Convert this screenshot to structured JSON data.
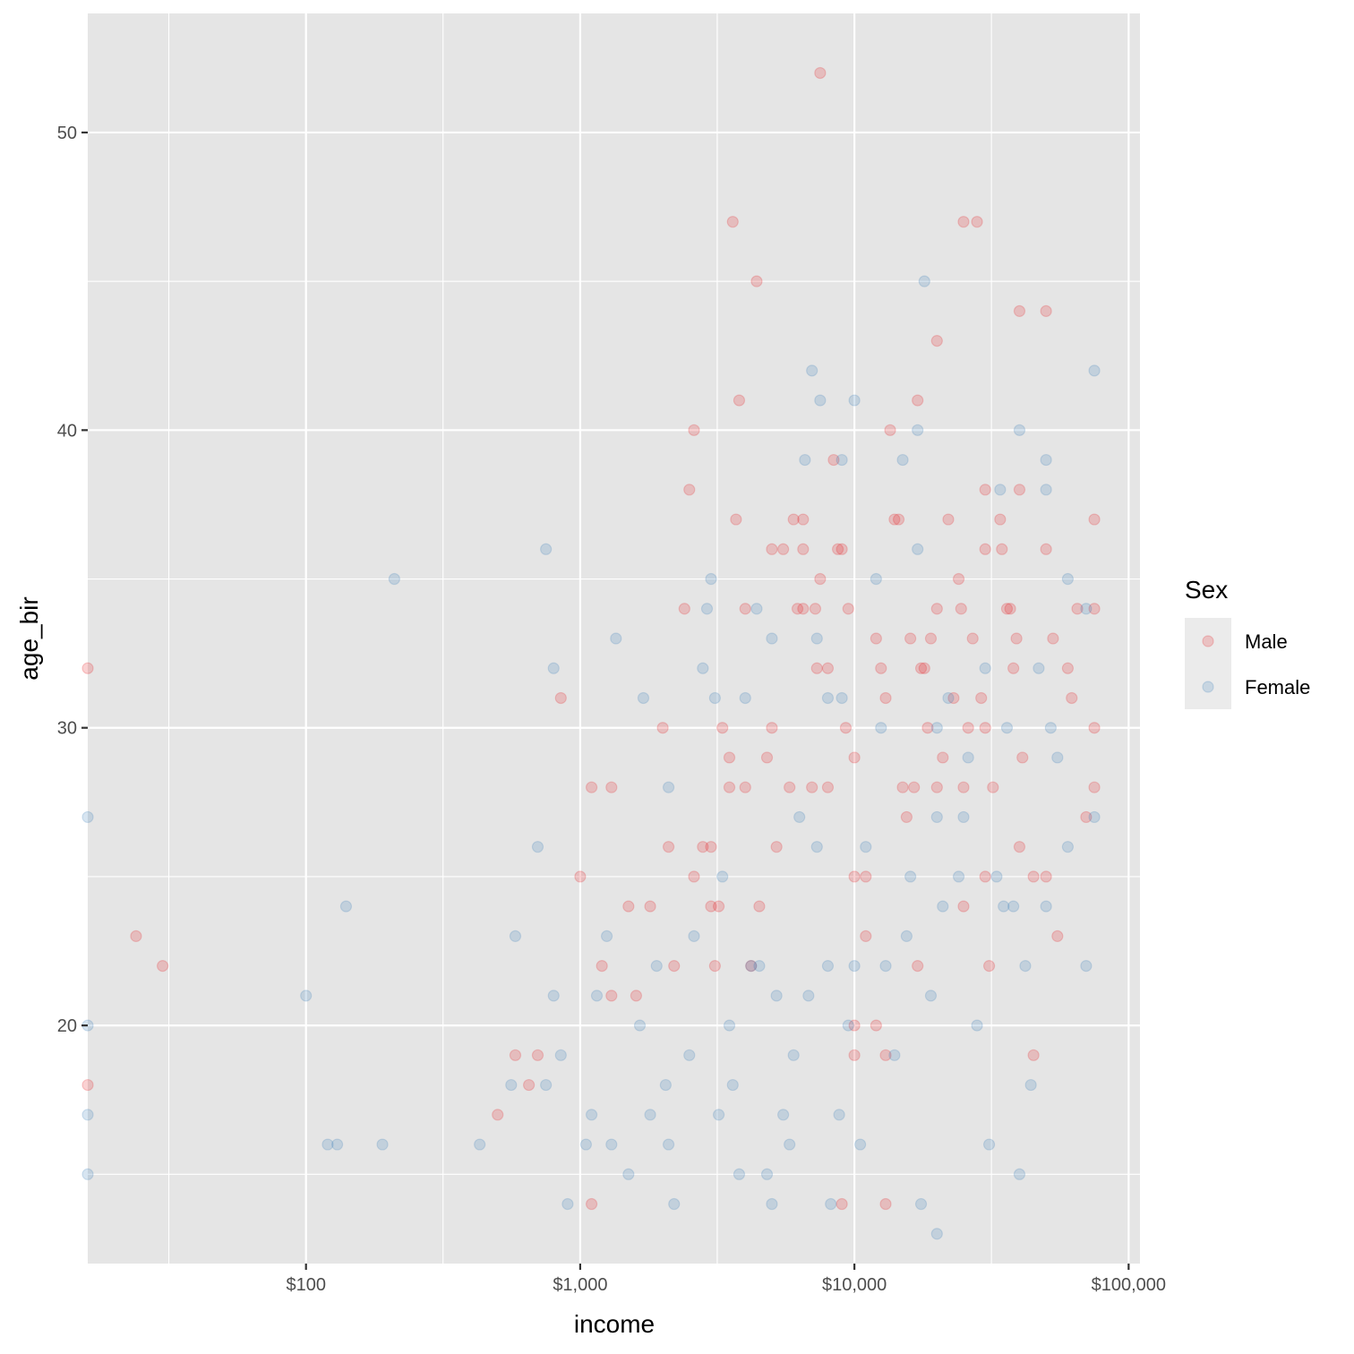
{
  "chart_data": {
    "type": "scatter",
    "xlabel": "income",
    "ylabel": "age_bir",
    "x_scale": "log10",
    "xlim": [
      16,
      110000
    ],
    "ylim": [
      12,
      54
    ],
    "x_ticks": [
      {
        "value": 100,
        "label": "$100"
      },
      {
        "value": 1000,
        "label": "$1,000"
      },
      {
        "value": 10000,
        "label": "$10,000"
      },
      {
        "value": 100000,
        "label": "$100,000"
      }
    ],
    "x_minor_ticks": [
      31.6,
      316,
      3160,
      31600
    ],
    "y_ticks": [
      {
        "value": 20,
        "label": "20"
      },
      {
        "value": 30,
        "label": "30"
      },
      {
        "value": 40,
        "label": "40"
      },
      {
        "value": 50,
        "label": "50"
      }
    ],
    "y_minor_ticks": [
      15,
      25,
      35,
      45
    ],
    "grid": true,
    "panel_background": "#e5e5e5",
    "grid_color": "#ffffff",
    "legend": {
      "title": "Sex",
      "placement": "right"
    },
    "point_opacity": 0.2,
    "series": [
      {
        "name": "Male",
        "color": "#e41a1c",
        "points": [
          [
            16,
            32
          ],
          [
            16,
            18
          ],
          [
            24,
            23
          ],
          [
            30,
            22
          ],
          [
            500,
            17
          ],
          [
            580,
            19
          ],
          [
            650,
            18
          ],
          [
            700,
            19
          ],
          [
            850,
            31
          ],
          [
            1000,
            25
          ],
          [
            1100,
            28
          ],
          [
            1100,
            14
          ],
          [
            1200,
            22
          ],
          [
            1300,
            28
          ],
          [
            1300,
            21
          ],
          [
            1500,
            24
          ],
          [
            1600,
            21
          ],
          [
            1800,
            24
          ],
          [
            2000,
            30
          ],
          [
            2100,
            26
          ],
          [
            2200,
            22
          ],
          [
            2400,
            34
          ],
          [
            2500,
            38
          ],
          [
            2600,
            40
          ],
          [
            2600,
            25
          ],
          [
            2800,
            26
          ],
          [
            3000,
            26
          ],
          [
            3000,
            24
          ],
          [
            3100,
            22
          ],
          [
            3200,
            24
          ],
          [
            3300,
            30
          ],
          [
            3500,
            29
          ],
          [
            3500,
            28
          ],
          [
            3600,
            47
          ],
          [
            3700,
            37
          ],
          [
            3800,
            41
          ],
          [
            4000,
            34
          ],
          [
            4000,
            28
          ],
          [
            4200,
            22
          ],
          [
            4400,
            45
          ],
          [
            4500,
            24
          ],
          [
            4800,
            29
          ],
          [
            5000,
            36
          ],
          [
            5000,
            30
          ],
          [
            5200,
            26
          ],
          [
            5500,
            36
          ],
          [
            5800,
            28
          ],
          [
            6000,
            37
          ],
          [
            6200,
            34
          ],
          [
            6500,
            34
          ],
          [
            6500,
            36
          ],
          [
            6500,
            37
          ],
          [
            7000,
            28
          ],
          [
            7200,
            34
          ],
          [
            7300,
            32
          ],
          [
            7500,
            35
          ],
          [
            7500,
            52
          ],
          [
            8000,
            32
          ],
          [
            8000,
            28
          ],
          [
            8400,
            39
          ],
          [
            8700,
            36
          ],
          [
            9000,
            36
          ],
          [
            9000,
            14
          ],
          [
            9300,
            30
          ],
          [
            9500,
            34
          ],
          [
            10000,
            29
          ],
          [
            10000,
            25
          ],
          [
            10000,
            20
          ],
          [
            10000,
            19
          ],
          [
            11000,
            25
          ],
          [
            11000,
            23
          ],
          [
            12000,
            33
          ],
          [
            12000,
            20
          ],
          [
            12500,
            32
          ],
          [
            13000,
            31
          ],
          [
            13000,
            19
          ],
          [
            13000,
            14
          ],
          [
            13500,
            40
          ],
          [
            14000,
            37
          ],
          [
            14500,
            37
          ],
          [
            15000,
            28
          ],
          [
            15500,
            27
          ],
          [
            16000,
            33
          ],
          [
            16500,
            28
          ],
          [
            17000,
            41
          ],
          [
            17000,
            22
          ],
          [
            17500,
            32
          ],
          [
            18000,
            32
          ],
          [
            18500,
            30
          ],
          [
            19000,
            33
          ],
          [
            20000,
            43
          ],
          [
            20000,
            34
          ],
          [
            20000,
            28
          ],
          [
            21000,
            29
          ],
          [
            22000,
            37
          ],
          [
            23000,
            31
          ],
          [
            24000,
            35
          ],
          [
            24500,
            34
          ],
          [
            25000,
            47
          ],
          [
            25000,
            28
          ],
          [
            25000,
            24
          ],
          [
            26000,
            30
          ],
          [
            27000,
            33
          ],
          [
            28000,
            47
          ],
          [
            29000,
            31
          ],
          [
            30000,
            38
          ],
          [
            30000,
            36
          ],
          [
            30000,
            30
          ],
          [
            30000,
            25
          ],
          [
            31000,
            22
          ],
          [
            32000,
            28
          ],
          [
            34000,
            37
          ],
          [
            34500,
            36
          ],
          [
            36000,
            34
          ],
          [
            37000,
            34
          ],
          [
            38000,
            32
          ],
          [
            39000,
            33
          ],
          [
            40000,
            44
          ],
          [
            40000,
            38
          ],
          [
            40000,
            26
          ],
          [
            41000,
            29
          ],
          [
            45000,
            25
          ],
          [
            45000,
            19
          ],
          [
            50000,
            44
          ],
          [
            50000,
            36
          ],
          [
            50000,
            25
          ],
          [
            53000,
            33
          ],
          [
            55000,
            23
          ],
          [
            60000,
            32
          ],
          [
            62000,
            31
          ],
          [
            65000,
            34
          ],
          [
            70000,
            27
          ],
          [
            75000,
            37
          ],
          [
            75000,
            34
          ],
          [
            75000,
            30
          ],
          [
            75000,
            28
          ]
        ]
      },
      {
        "name": "Female",
        "color": "#377eb8",
        "points": [
          [
            16,
            27
          ],
          [
            16,
            20
          ],
          [
            16,
            17
          ],
          [
            16,
            15
          ],
          [
            100,
            21
          ],
          [
            120,
            16
          ],
          [
            130,
            16
          ],
          [
            140,
            24
          ],
          [
            190,
            16
          ],
          [
            210,
            35
          ],
          [
            430,
            16
          ],
          [
            560,
            18
          ],
          [
            580,
            23
          ],
          [
            700,
            26
          ],
          [
            750,
            36
          ],
          [
            750,
            18
          ],
          [
            800,
            32
          ],
          [
            800,
            21
          ],
          [
            850,
            19
          ],
          [
            900,
            14
          ],
          [
            1050,
            16
          ],
          [
            1100,
            17
          ],
          [
            1150,
            21
          ],
          [
            1250,
            23
          ],
          [
            1300,
            16
          ],
          [
            1350,
            33
          ],
          [
            1500,
            15
          ],
          [
            1650,
            20
          ],
          [
            1700,
            31
          ],
          [
            1800,
            17
          ],
          [
            1900,
            22
          ],
          [
            2050,
            18
          ],
          [
            2100,
            28
          ],
          [
            2100,
            16
          ],
          [
            2200,
            14
          ],
          [
            2500,
            19
          ],
          [
            2600,
            23
          ],
          [
            2800,
            32
          ],
          [
            2900,
            34
          ],
          [
            3000,
            35
          ],
          [
            3100,
            31
          ],
          [
            3200,
            17
          ],
          [
            3300,
            25
          ],
          [
            3500,
            20
          ],
          [
            3600,
            18
          ],
          [
            3800,
            15
          ],
          [
            4000,
            31
          ],
          [
            4200,
            22
          ],
          [
            4400,
            34
          ],
          [
            4500,
            22
          ],
          [
            4800,
            15
          ],
          [
            5000,
            33
          ],
          [
            5000,
            14
          ],
          [
            5200,
            21
          ],
          [
            5500,
            17
          ],
          [
            5800,
            16
          ],
          [
            6000,
            19
          ],
          [
            6300,
            27
          ],
          [
            6600,
            39
          ],
          [
            6800,
            21
          ],
          [
            7000,
            42
          ],
          [
            7300,
            33
          ],
          [
            7300,
            26
          ],
          [
            7500,
            41
          ],
          [
            8000,
            31
          ],
          [
            8000,
            22
          ],
          [
            8200,
            14
          ],
          [
            8800,
            17
          ],
          [
            9000,
            39
          ],
          [
            9000,
            31
          ],
          [
            9500,
            20
          ],
          [
            10000,
            41
          ],
          [
            10000,
            22
          ],
          [
            10500,
            16
          ],
          [
            11000,
            26
          ],
          [
            12000,
            35
          ],
          [
            12500,
            30
          ],
          [
            13000,
            22
          ],
          [
            14000,
            19
          ],
          [
            15000,
            39
          ],
          [
            15500,
            23
          ],
          [
            16000,
            25
          ],
          [
            17000,
            40
          ],
          [
            17000,
            36
          ],
          [
            17500,
            14
          ],
          [
            18000,
            45
          ],
          [
            19000,
            21
          ],
          [
            20000,
            13
          ],
          [
            20000,
            30
          ],
          [
            20000,
            27
          ],
          [
            21000,
            24
          ],
          [
            22000,
            31
          ],
          [
            24000,
            25
          ],
          [
            25000,
            27
          ],
          [
            26000,
            29
          ],
          [
            28000,
            20
          ],
          [
            30000,
            32
          ],
          [
            31000,
            16
          ],
          [
            33000,
            25
          ],
          [
            34000,
            38
          ],
          [
            35000,
            24
          ],
          [
            36000,
            30
          ],
          [
            38000,
            24
          ],
          [
            40000,
            40
          ],
          [
            40000,
            15
          ],
          [
            42000,
            22
          ],
          [
            44000,
            18
          ],
          [
            47000,
            32
          ],
          [
            50000,
            39
          ],
          [
            50000,
            38
          ],
          [
            50000,
            24
          ],
          [
            52000,
            30
          ],
          [
            55000,
            29
          ],
          [
            60000,
            35
          ],
          [
            60000,
            26
          ],
          [
            70000,
            34
          ],
          [
            70000,
            22
          ],
          [
            75000,
            42
          ],
          [
            75000,
            27
          ]
        ]
      }
    ]
  }
}
